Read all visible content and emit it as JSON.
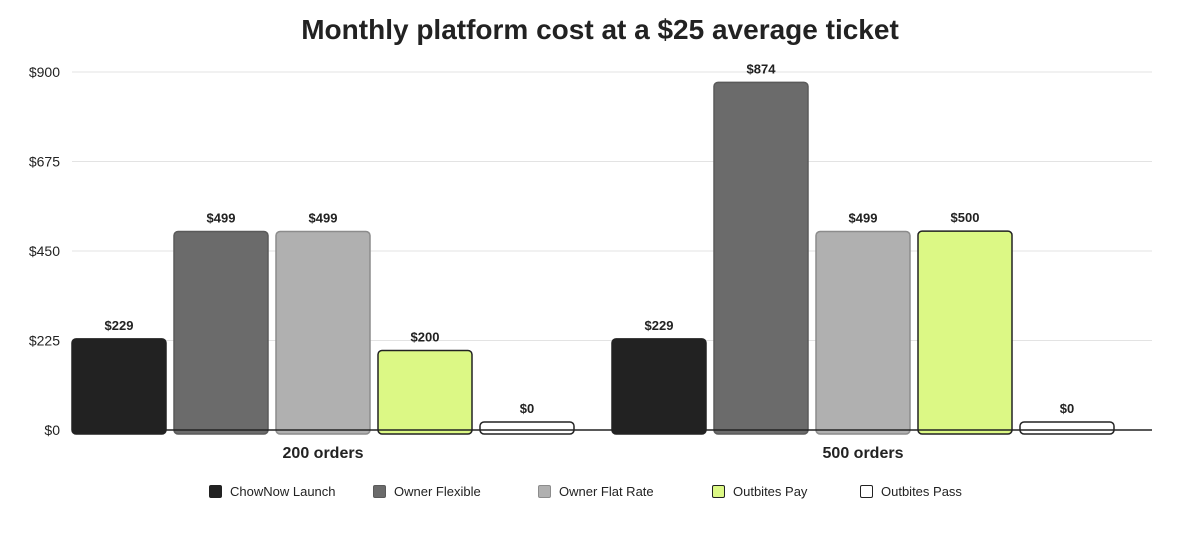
{
  "chart_data": {
    "type": "bar",
    "title": "Monthly platform cost at a $25 average ticket",
    "categories": [
      "200 orders",
      "500 orders"
    ],
    "series": [
      {
        "name": "ChowNow Launch",
        "values": [
          229,
          229
        ],
        "labels": [
          "$229",
          "$229"
        ],
        "color": "#222222"
      },
      {
        "name": "Owner Flexible",
        "values": [
          499,
          874
        ],
        "labels": [
          "$499",
          "$874"
        ],
        "color": "#6b6b6b"
      },
      {
        "name": "Owner Flat Rate",
        "values": [
          499,
          499
        ],
        "labels": [
          "$499",
          "$499"
        ],
        "color": "#b0b0b0"
      },
      {
        "name": "Outbites Pay",
        "values": [
          200,
          500
        ],
        "labels": [
          "$200",
          "$500"
        ],
        "color": "#dcf885"
      },
      {
        "name": "Outbites Pass",
        "values": [
          0,
          0
        ],
        "labels": [
          "$0",
          "$0"
        ],
        "color": "#ffffff"
      }
    ],
    "yticks": [
      0,
      225,
      450,
      675,
      900
    ],
    "ytick_labels": [
      "$0",
      "$225",
      "$450",
      "$675",
      "$900"
    ],
    "ylim": [
      0,
      900
    ],
    "grid": true,
    "legend_position": "bottom"
  }
}
